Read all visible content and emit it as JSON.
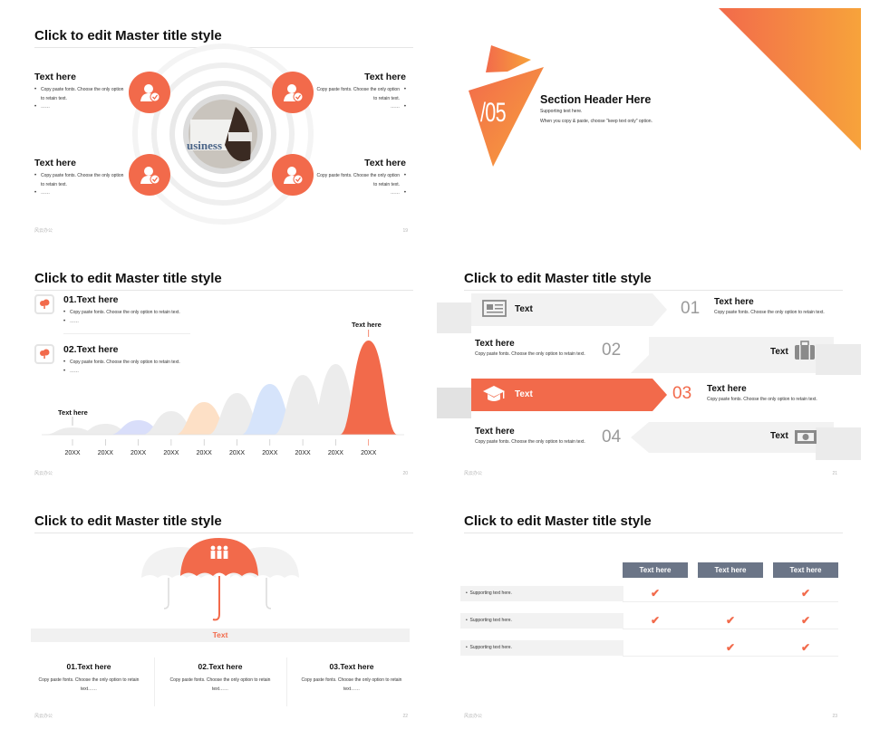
{
  "slide1": {
    "title": "Click to edit Master title style",
    "footer_left": "风云办公",
    "footer_right": "19",
    "items": [
      {
        "heading": "Text here",
        "lines": [
          "Copy paste fonts. Choose the only option to retain text.",
          "……"
        ]
      },
      {
        "heading": "Text here",
        "lines": [
          "Copy paste fonts. Choose the only option to retain text.",
          "……"
        ]
      },
      {
        "heading": "Text here",
        "lines": [
          "Copy paste fonts. Choose the only option to retain text.",
          "……"
        ]
      },
      {
        "heading": "Text here",
        "lines": [
          "Copy paste fonts. Choose the only option to retain text.",
          "……"
        ]
      }
    ],
    "center_photo_text": "usiness"
  },
  "slide2": {
    "number": "/05",
    "header": "Section Header Here",
    "sub1": "Supporting text here.",
    "sub2": "When you copy & paste, choose \"keep text only\" option."
  },
  "slide3": {
    "title": "Click to edit Master title style",
    "footer_left": "风云办公",
    "footer_right": "20",
    "item1": {
      "heading": "01.Text here",
      "lines": [
        "Copy paste fonts. Choose the only option to retain text.",
        "……"
      ]
    },
    "item2": {
      "heading": "02.Text here",
      "lines": [
        "Copy paste fonts. Choose the only option to retain text.",
        "……"
      ]
    },
    "label_left": "Text here",
    "label_right": "Text here",
    "years": [
      "20XX",
      "20XX",
      "20XX",
      "20XX",
      "20XX",
      "20XX",
      "20XX",
      "20XX",
      "20XX",
      "20XX"
    ],
    "peak_colors": [
      "#ececec",
      "#ececec",
      "#d9defa",
      "#ececec",
      "#fde0c6",
      "#ececec",
      "#d6e4fb",
      "#ececec",
      "#ececec",
      "#f26a4b"
    ]
  },
  "slide4": {
    "title": "Click to edit Master title style",
    "footer_left": "风云办公",
    "footer_right": "21",
    "rows": [
      {
        "num": "01",
        "tag": "Text",
        "heading": "Text here",
        "desc": "Copy paste fonts. Choose the only option to retain text.",
        "icon": "newspaper-icon"
      },
      {
        "num": "02",
        "tag": "Text",
        "heading": "Text here",
        "desc": "Copy paste fonts. Choose the only option to retain text.",
        "icon": "briefcase-icon"
      },
      {
        "num": "03",
        "tag": "Text",
        "heading": "Text here",
        "desc": "Copy paste fonts. Choose the only option to retain text.",
        "icon": "graduation-cap-icon"
      },
      {
        "num": "04",
        "tag": "Text",
        "heading": "Text here",
        "desc": "Copy paste fonts. Choose the only option to retain text.",
        "icon": "money-icon"
      }
    ]
  },
  "slide5": {
    "title": "Click to edit Master title style",
    "footer_left": "风云办公",
    "footer_right": "22",
    "bar_label": "Text",
    "cols": [
      {
        "heading": "01.Text here",
        "desc": "Copy paste fonts. Choose the only option to retain text……"
      },
      {
        "heading": "02.Text here",
        "desc": "Copy paste fonts. Choose the only option to retain text……"
      },
      {
        "heading": "03.Text here",
        "desc": "Copy paste fonts. Choose the only option to retain text……"
      }
    ]
  },
  "slide6": {
    "title": "Click to edit Master title style",
    "footer_left": "风云办公",
    "footer_right": "23",
    "headers": [
      "Text here",
      "Text here",
      "Text here"
    ],
    "rows": [
      {
        "label": "Supporting text here.",
        "checks": [
          true,
          false,
          true
        ]
      },
      {
        "label": "Supporting text here.",
        "checks": [
          true,
          true,
          true
        ]
      },
      {
        "label": "Supporting text here.",
        "checks": [
          false,
          true,
          true
        ]
      }
    ],
    "check_symbol": "✔"
  },
  "colors": {
    "accent": "#f26a4b",
    "gradient_start": "#f26a4b",
    "gradient_end": "#f7a33b",
    "table_header": "#6b7587"
  }
}
